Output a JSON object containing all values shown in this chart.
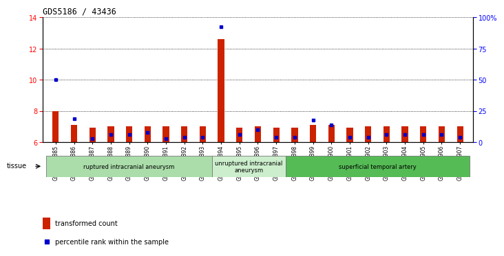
{
  "title": "GDS5186 / 43436",
  "samples": [
    "GSM1306885",
    "GSM1306886",
    "GSM1306887",
    "GSM1306888",
    "GSM1306889",
    "GSM1306890",
    "GSM1306891",
    "GSM1306892",
    "GSM1306893",
    "GSM1306894",
    "GSM1306895",
    "GSM1306896",
    "GSM1306897",
    "GSM1306898",
    "GSM1306899",
    "GSM1306900",
    "GSM1306901",
    "GSM1306902",
    "GSM1306903",
    "GSM1306904",
    "GSM1306905",
    "GSM1306906",
    "GSM1306907"
  ],
  "red_values": [
    8.0,
    7.1,
    6.9,
    7.0,
    7.0,
    7.0,
    7.0,
    7.0,
    7.0,
    12.6,
    6.9,
    7.0,
    6.9,
    6.9,
    7.1,
    7.1,
    6.9,
    7.0,
    7.0,
    7.0,
    7.0,
    7.0,
    7.0
  ],
  "blue_values": [
    10.0,
    7.5,
    6.2,
    6.5,
    6.5,
    6.6,
    6.2,
    6.3,
    6.3,
    13.4,
    6.5,
    6.8,
    6.3,
    6.3,
    7.4,
    7.1,
    6.3,
    6.3,
    6.5,
    6.5,
    6.5,
    6.5,
    6.3
  ],
  "ylim": [
    6,
    14
  ],
  "y2lim": [
    0,
    100
  ],
  "yticks": [
    6,
    8,
    10,
    12,
    14
  ],
  "y2ticks": [
    0,
    25,
    50,
    75,
    100
  ],
  "tissue_groups": [
    {
      "label": "ruptured intracranial aneurysm",
      "start": 0,
      "end": 9,
      "color": "#aaddaa"
    },
    {
      "label": "unruptured intracranial\naneurysm",
      "start": 9,
      "end": 13,
      "color": "#cceecc"
    },
    {
      "label": "superficial temporal artery",
      "start": 13,
      "end": 23,
      "color": "#55bb55"
    }
  ],
  "red_color": "#cc2200",
  "blue_color": "#0000cc",
  "plot_bg": "#ffffff",
  "bar_width": 0.35
}
